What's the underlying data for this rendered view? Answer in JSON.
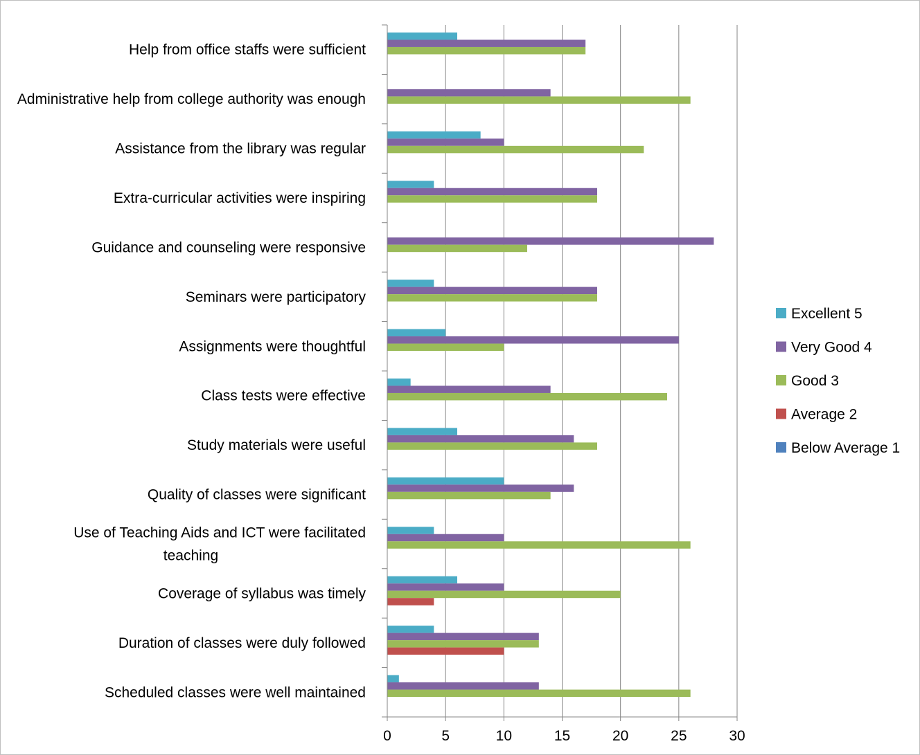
{
  "chart_data": {
    "type": "bar",
    "orientation": "horizontal",
    "grid": true,
    "legend_position": "right",
    "xlim": [
      0,
      30
    ],
    "x_ticks": [
      0,
      5,
      10,
      15,
      20,
      25,
      30
    ],
    "categories": [
      "Help from office staffs were sufficient",
      "Administrative help from college authority was enough",
      "Assistance from the library was regular",
      "Extra-curricular activities were inspiring",
      "Guidance and counseling were responsive",
      "Seminars were participatory",
      "Assignments were thoughtful",
      "Class tests were effective",
      "Study materials were useful",
      "Quality of classes were significant",
      "Use of Teaching Aids and ICT were facilitated teaching",
      "Coverage of syllabus was timely",
      "Duration of classes were duly followed",
      "Scheduled classes were well maintained"
    ],
    "series": [
      {
        "name": "Excellent 5",
        "color": "#4bacc6",
        "values": [
          6,
          0,
          8,
          4,
          0,
          4,
          5,
          2,
          6,
          10,
          4,
          6,
          4,
          1
        ]
      },
      {
        "name": "Very Good 4",
        "color": "#8064a2",
        "values": [
          17,
          14,
          10,
          18,
          28,
          18,
          25,
          14,
          16,
          16,
          10,
          10,
          13,
          13
        ]
      },
      {
        "name": "Good 3",
        "color": "#9bbb59",
        "values": [
          17,
          26,
          22,
          18,
          12,
          18,
          10,
          24,
          18,
          14,
          26,
          20,
          13,
          26
        ]
      },
      {
        "name": "Average 2",
        "color": "#c0504d",
        "values": [
          0,
          0,
          0,
          0,
          0,
          0,
          0,
          0,
          0,
          0,
          0,
          4,
          10,
          0
        ]
      },
      {
        "name": "Below Average 1",
        "color": "#4f81bd",
        "values": [
          0,
          0,
          0,
          0,
          0,
          0,
          0,
          0,
          0,
          0,
          0,
          0,
          0,
          0
        ]
      }
    ]
  }
}
